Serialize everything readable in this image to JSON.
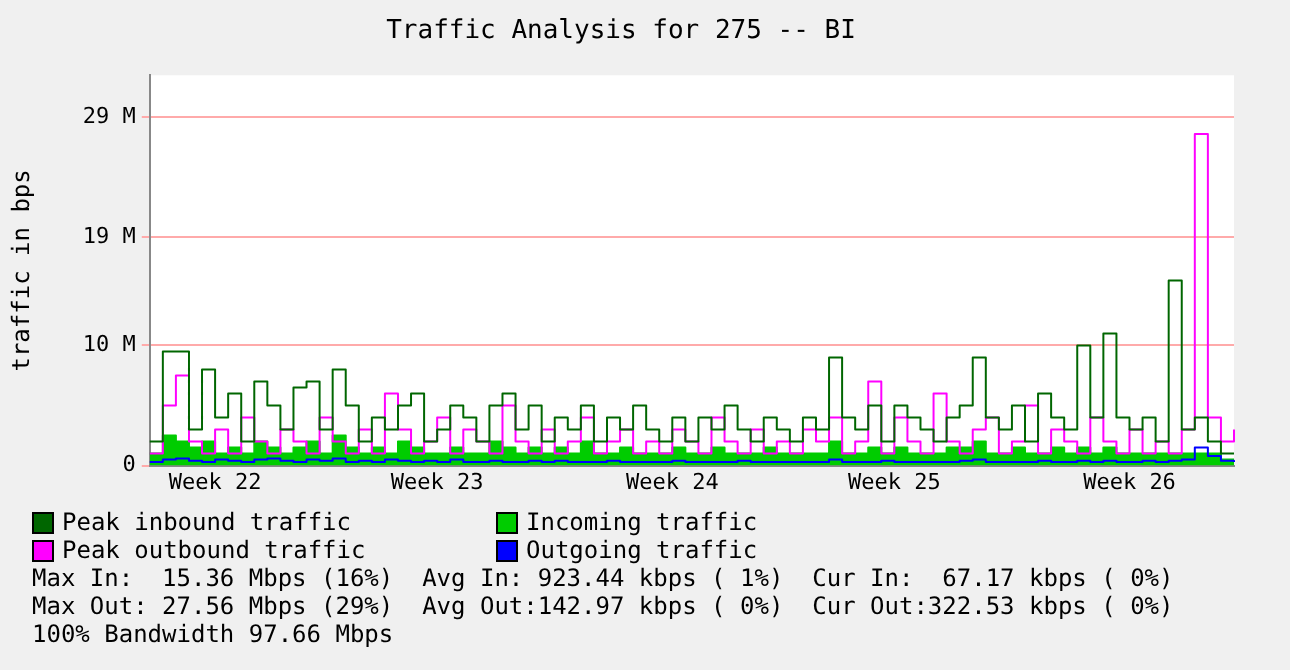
{
  "chart_data": {
    "type": "step",
    "title": "Traffic Analysis for 275 -- BI",
    "ylabel": "traffic in bps",
    "categories": [
      null,
      null,
      null,
      null,
      null,
      "Week 22",
      null,
      null,
      null,
      null,
      null,
      null,
      null,
      null,
      null,
      null,
      null,
      null,
      null,
      null,
      null,
      null,
      "Week 23",
      null,
      null,
      null,
      null,
      null,
      null,
      null,
      null,
      null,
      null,
      null,
      null,
      null,
      null,
      null,
      null,
      null,
      "Week 24",
      null,
      null,
      null,
      null,
      null,
      null,
      null,
      null,
      null,
      null,
      null,
      null,
      null,
      null,
      null,
      null,
      "Week 25",
      null,
      null,
      null,
      null,
      null,
      null,
      null,
      null,
      null,
      null,
      null,
      null,
      null,
      null,
      null,
      null,
      null,
      "Week 26",
      null,
      null,
      null,
      null,
      null,
      null,
      null,
      null
    ],
    "series": [
      {
        "name": "Peak inbound traffic",
        "color": "#006600",
        "values": [
          2,
          9.5,
          9.5,
          3,
          8,
          4,
          6,
          2,
          7,
          5,
          3,
          6.5,
          7,
          3,
          8,
          5,
          2,
          4,
          3,
          5,
          6,
          2,
          3,
          5,
          4,
          2,
          5,
          6,
          3,
          5,
          2,
          4,
          3,
          5,
          2,
          4,
          3,
          5,
          3,
          2,
          4,
          2,
          4,
          3,
          5,
          3,
          2,
          4,
          3,
          2,
          4,
          3,
          9,
          4,
          3,
          5,
          2,
          5,
          4,
          3,
          2,
          4,
          5,
          9,
          4,
          3,
          5,
          2,
          6,
          4,
          3,
          10,
          4,
          11,
          4,
          3,
          4,
          2,
          15.4,
          3,
          4,
          2,
          1,
          1
        ]
      },
      {
        "name": "Incoming traffic",
        "type": "area",
        "color": "#00cc00",
        "values": [
          1,
          2.5,
          2,
          1.5,
          2,
          1,
          1.5,
          1,
          2,
          1.5,
          1,
          1.5,
          2,
          1,
          2.5,
          1.5,
          1,
          1.5,
          1,
          2,
          1.5,
          1,
          1,
          1.5,
          1,
          1,
          2,
          1.5,
          1,
          1.5,
          1,
          1.5,
          1,
          2,
          1,
          1,
          1.5,
          1,
          1,
          1,
          1.5,
          1,
          1,
          1.5,
          1,
          1,
          1,
          1.5,
          1,
          1,
          1,
          1,
          2,
          1,
          1,
          1.5,
          1,
          1.5,
          1,
          1,
          1,
          1.5,
          1.5,
          2,
          1,
          1,
          1.5,
          1,
          1,
          1.5,
          1,
          1.5,
          1,
          1.5,
          1,
          1,
          1,
          1,
          1,
          1,
          1,
          1,
          0.5,
          0.5
        ]
      },
      {
        "name": "Peak outbound traffic",
        "color": "#ff00ff",
        "values": [
          1,
          5,
          7.5,
          2,
          1,
          3,
          1,
          4,
          2,
          1,
          3,
          2,
          1,
          4,
          2,
          1,
          3,
          1,
          6,
          3,
          1,
          2,
          4,
          1,
          3,
          2,
          1,
          5,
          2,
          1,
          3,
          1,
          2,
          4,
          1,
          2,
          3,
          1,
          2,
          1,
          3,
          2,
          1,
          4,
          2,
          1,
          3,
          1,
          2,
          1,
          3,
          2,
          4,
          1,
          2,
          7,
          1,
          4,
          2,
          1,
          6,
          2,
          1,
          3,
          4,
          1,
          2,
          5,
          1,
          3,
          2,
          1,
          4,
          2,
          1,
          3,
          1,
          2,
          1,
          3,
          27.6,
          4,
          2,
          3
        ]
      },
      {
        "name": "Outgoing traffic",
        "color": "#0000ff",
        "values": [
          0.3,
          0.5,
          0.6,
          0.4,
          0.3,
          0.5,
          0.4,
          0.3,
          0.5,
          0.6,
          0.4,
          0.3,
          0.5,
          0.4,
          0.6,
          0.3,
          0.4,
          0.3,
          0.5,
          0.4,
          0.3,
          0.4,
          0.3,
          0.5,
          0.3,
          0.3,
          0.4,
          0.3,
          0.3,
          0.4,
          0.3,
          0.4,
          0.3,
          0.3,
          0.3,
          0.4,
          0.3,
          0.3,
          0.3,
          0.3,
          0.4,
          0.3,
          0.3,
          0.3,
          0.3,
          0.4,
          0.3,
          0.3,
          0.3,
          0.3,
          0.3,
          0.3,
          0.5,
          0.3,
          0.3,
          0.3,
          0.4,
          0.3,
          0.3,
          0.3,
          0.3,
          0.3,
          0.4,
          0.5,
          0.3,
          0.3,
          0.3,
          0.3,
          0.4,
          0.3,
          0.3,
          0.4,
          0.3,
          0.4,
          0.3,
          0.3,
          0.4,
          0.3,
          0.4,
          0.5,
          1.5,
          0.8,
          0.4,
          0.3
        ]
      }
    ],
    "ylim": [
      0,
      32.5
    ],
    "yticks": [
      {
        "value": 0,
        "label": "0"
      },
      {
        "value": 10,
        "label": "10 M"
      },
      {
        "value": 19,
        "label": "19 M"
      },
      {
        "value": 29,
        "label": "29 M"
      }
    ],
    "grid": "y",
    "legend": "bottom",
    "marker": "none",
    "line_style": "solid",
    "annotations": [
      "Max In:  15.36 Mbps (16%)  Avg In: 923.44 kbps ( 1%)  Cur In:  67.17 kbps ( 0%)",
      "Max Out: 27.56 Mbps (29%)  Avg Out:142.97 kbps ( 0%)  Cur Out:322.53 kbps ( 0%)",
      "100% Bandwidth 97.66 Mbps"
    ]
  }
}
